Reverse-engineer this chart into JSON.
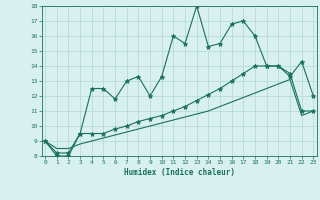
{
  "xlabel": "Humidex (Indice chaleur)",
  "x": [
    0,
    1,
    2,
    3,
    4,
    5,
    6,
    7,
    8,
    9,
    10,
    11,
    12,
    13,
    14,
    15,
    16,
    17,
    18,
    19,
    20,
    21,
    22,
    23
  ],
  "line1": [
    9.0,
    8.0,
    8.0,
    9.5,
    12.5,
    12.5,
    11.8,
    13.0,
    13.3,
    12.0,
    13.3,
    16.0,
    15.5,
    18.0,
    15.3,
    15.5,
    16.8,
    17.0,
    16.0,
    14.0,
    14.0,
    13.3,
    14.3,
    12.0
  ],
  "line2": [
    9.0,
    8.2,
    8.2,
    9.5,
    9.5,
    9.5,
    9.8,
    10.0,
    10.3,
    10.5,
    10.7,
    11.0,
    11.3,
    11.7,
    12.1,
    12.5,
    13.0,
    13.5,
    14.0,
    14.0,
    14.0,
    13.5,
    11.0,
    11.0
  ],
  "line3": [
    9.0,
    8.5,
    8.5,
    8.8,
    9.0,
    9.2,
    9.4,
    9.6,
    9.8,
    10.0,
    10.2,
    10.4,
    10.6,
    10.8,
    11.0,
    11.3,
    11.6,
    11.9,
    12.2,
    12.5,
    12.8,
    13.1,
    10.7,
    11.0
  ],
  "ylim": [
    8,
    18
  ],
  "xlim": [
    0,
    23
  ],
  "yticks": [
    8,
    9,
    10,
    11,
    12,
    13,
    14,
    15,
    16,
    17,
    18
  ],
  "xticks": [
    0,
    1,
    2,
    3,
    4,
    5,
    6,
    7,
    8,
    9,
    10,
    11,
    12,
    13,
    14,
    15,
    16,
    17,
    18,
    19,
    20,
    21,
    22,
    23
  ],
  "line_color": "#1a7060",
  "bg_color": "#d8f0ee",
  "grid_color": "#b0d8d4",
  "marker": "*",
  "marker_size": 3.5,
  "linewidth": 0.8
}
